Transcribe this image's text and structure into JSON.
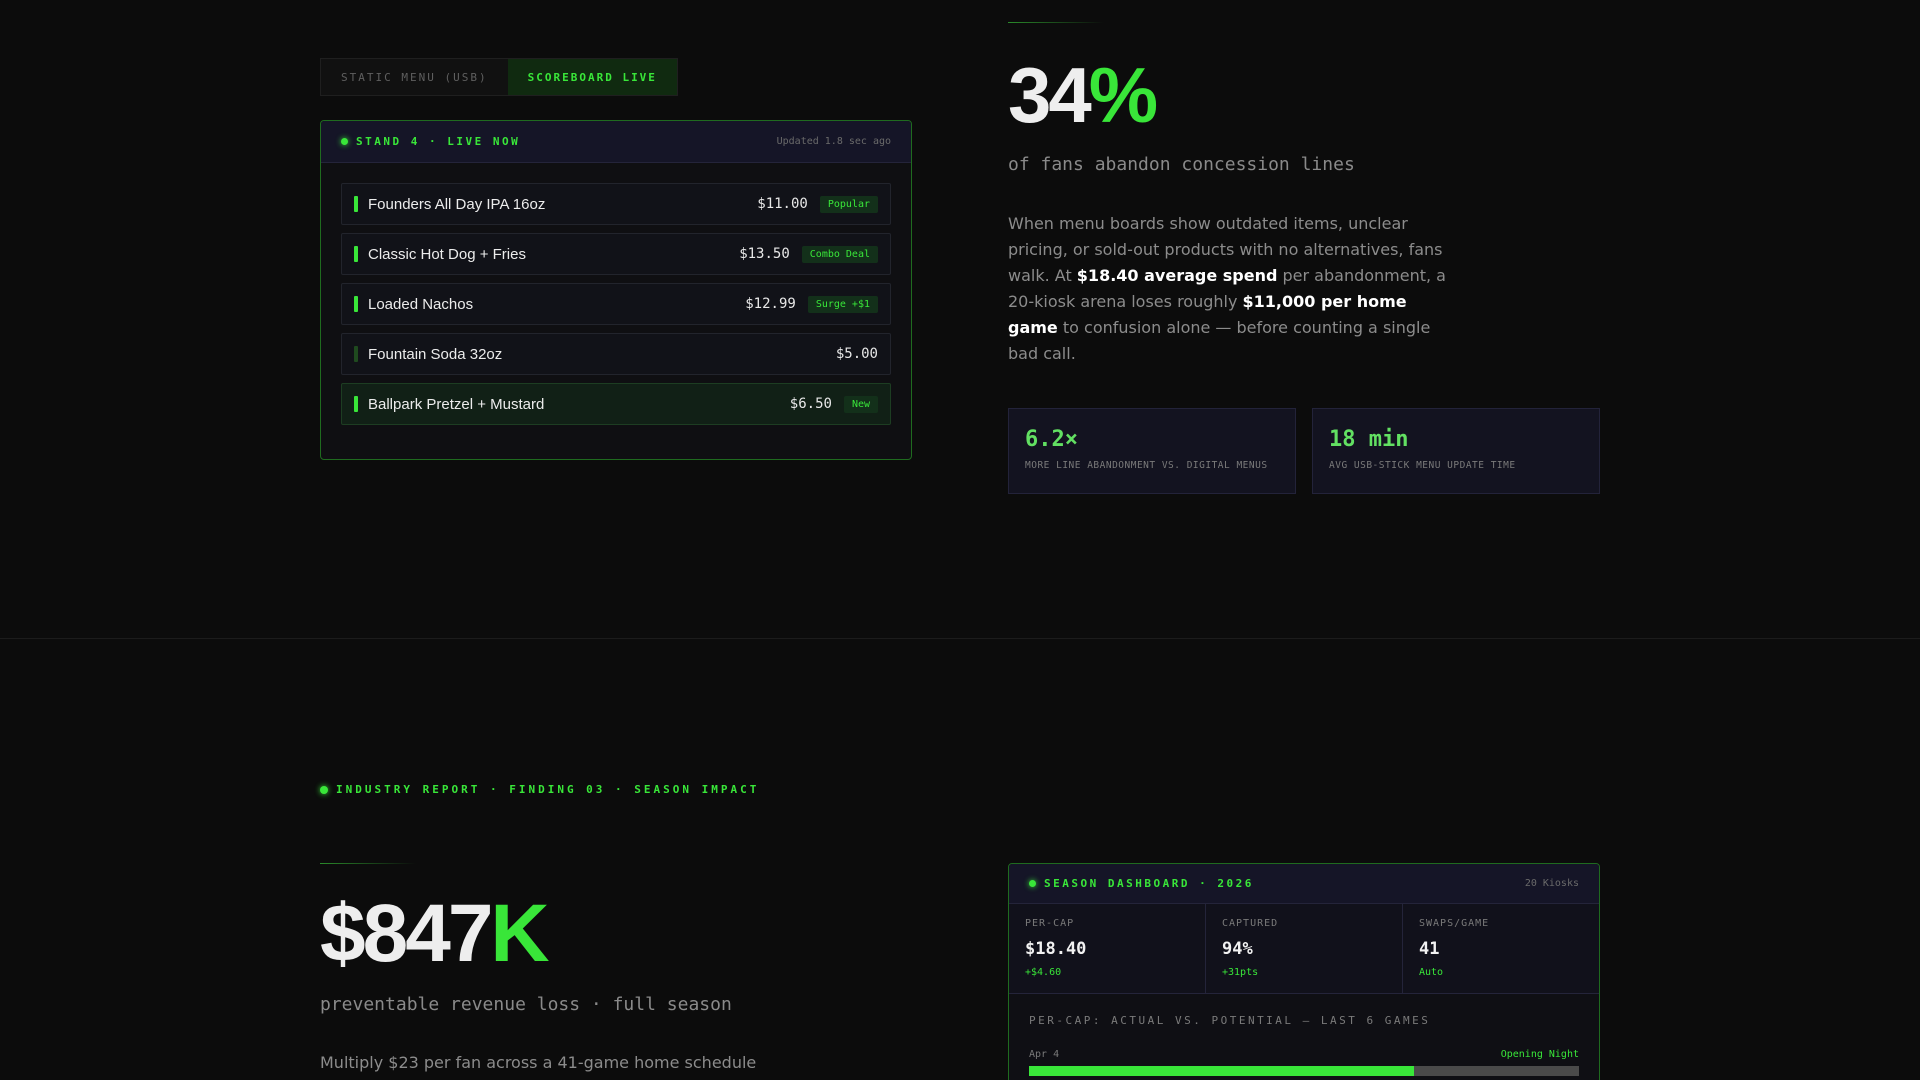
{
  "tabs": {
    "static": "STATIC MENU (USB)",
    "live": "SCOREBOARD LIVE"
  },
  "menu_panel": {
    "title": "STAND 4 · LIVE NOW",
    "updated": "Updated 1.8 sec ago",
    "items": [
      {
        "name": "Founders All Day IPA 16oz",
        "price": "$11.00",
        "badge": "Popular"
      },
      {
        "name": "Classic Hot Dog + Fries",
        "price": "$13.50",
        "badge": "Combo Deal"
      },
      {
        "name": "Loaded Nachos",
        "price": "$12.99",
        "badge": "Surge +$1"
      },
      {
        "name": "Fountain Soda 32oz",
        "price": "$5.00"
      },
      {
        "name": "Ballpark Pretzel + Mustard",
        "price": "$6.50",
        "badge": "New"
      }
    ]
  },
  "stat_abandon": {
    "number": "34",
    "suffix": "%",
    "caption": "of fans abandon concession lines",
    "body_1": "When menu boards show outdated items, unclear pricing, or sold-out products with no alternatives, fans walk. At ",
    "body_bold_1": "$18.40 average spend",
    "body_2": " per abandonment, a 20-kiosk arena loses roughly ",
    "body_bold_2": "$11,000 per home game",
    "body_3": " to confusion alone — before counting a single bad call."
  },
  "stat_cards": [
    {
      "value": "6.2×",
      "label": "MORE LINE ABANDONMENT VS. DIGITAL MENUS"
    },
    {
      "value": "18 min",
      "label": "AVG USB-STICK MENU UPDATE TIME"
    }
  ],
  "section2": {
    "kicker": "INDUSTRY REPORT · FINDING 03 · SEASON IMPACT",
    "number": "$847",
    "suffix": "K",
    "caption": "preventable revenue loss · full season",
    "body": "Multiply $23 per fan across a 41-game home schedule"
  },
  "dashboard": {
    "title": "SEASON DASHBOARD · 2026",
    "kiosks": "20 Kiosks",
    "metrics": [
      {
        "label": "PER-CAP",
        "value": "$18.40",
        "delta": "+$4.60"
      },
      {
        "label": "CAPTURED",
        "value": "94%",
        "delta": "+31pts"
      },
      {
        "label": "SWAPS/GAME",
        "value": "41",
        "delta": "Auto"
      }
    ],
    "chart_title": "PER-CAP: ACTUAL VS. POTENTIAL — LAST 6 GAMES",
    "rows": [
      {
        "date": "Apr 4",
        "note": "Opening Night",
        "actual_fraction": 0.7
      }
    ]
  },
  "colors": {
    "accent": "#39e639",
    "background": "#0c0c0c",
    "panel": "#151527"
  }
}
